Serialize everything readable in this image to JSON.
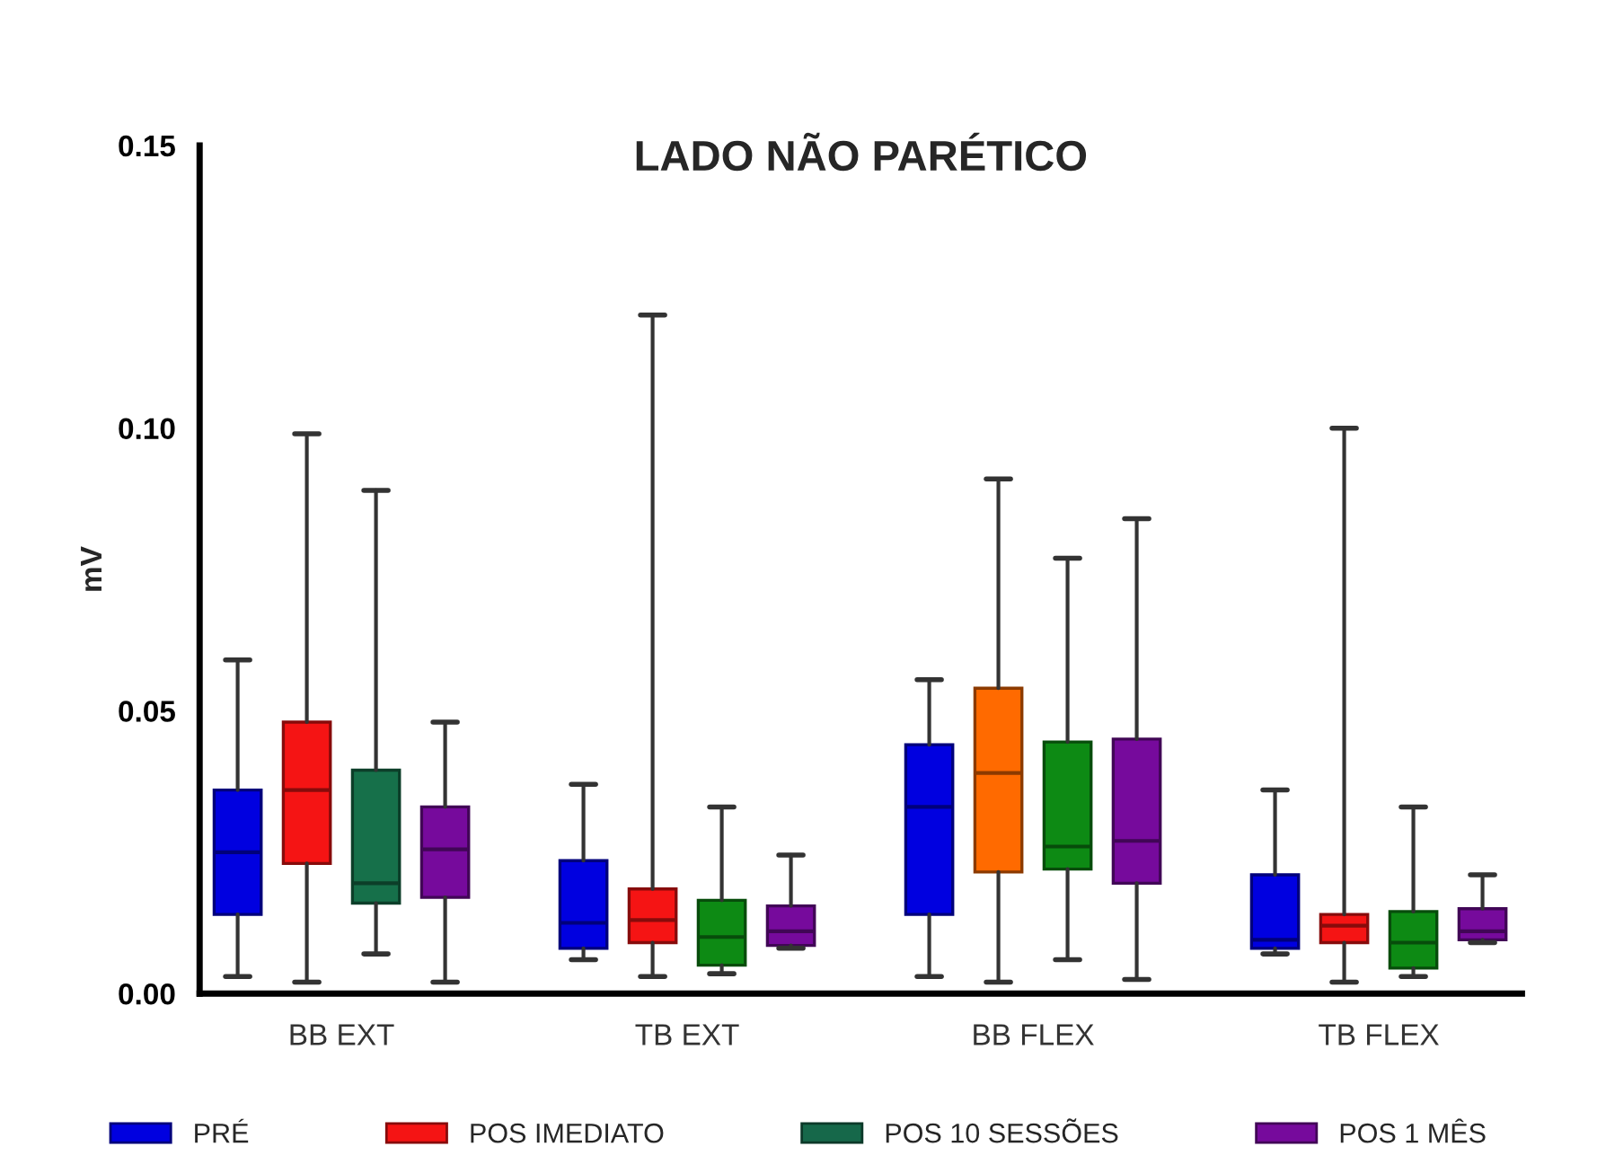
{
  "chart_data": {
    "type": "box",
    "title": "LADO NÃO PARÉTICO",
    "ylabel": "mV",
    "categories": [
      "BB EXT",
      "TB EXT",
      "BB FLEX",
      "TB FLEX"
    ],
    "series": [
      {
        "name": "PRÉ",
        "color": "#0000e0",
        "boxes": [
          {
            "low": 0.003,
            "q1": 0.014,
            "median": 0.025,
            "q3": 0.036,
            "high": 0.059
          },
          {
            "low": 0.006,
            "q1": 0.008,
            "median": 0.0125,
            "q3": 0.0235,
            "high": 0.037
          },
          {
            "low": 0.003,
            "q1": 0.014,
            "median": 0.033,
            "q3": 0.044,
            "high": 0.0555
          },
          {
            "low": 0.007,
            "q1": 0.008,
            "median": 0.0095,
            "q3": 0.021,
            "high": 0.036
          }
        ]
      },
      {
        "name": "POS IMEDIATO",
        "color": "#f51414",
        "colors": [
          "#f51414",
          "#f51414",
          "#ff6a00",
          "#f51414"
        ],
        "boxes": [
          {
            "low": 0.002,
            "q1": 0.023,
            "median": 0.036,
            "q3": 0.048,
            "high": 0.099
          },
          {
            "low": 0.003,
            "q1": 0.009,
            "median": 0.013,
            "q3": 0.0185,
            "high": 0.12
          },
          {
            "low": 0.002,
            "q1": 0.0215,
            "median": 0.039,
            "q3": 0.054,
            "high": 0.091
          },
          {
            "low": 0.002,
            "q1": 0.009,
            "median": 0.012,
            "q3": 0.014,
            "high": 0.1
          }
        ]
      },
      {
        "name": "POS 10 SESSÕES",
        "color": "#16684a",
        "colors": [
          "#16704a",
          "#0d8a14",
          "#0d8a14",
          "#0d8a14"
        ],
        "boxes": [
          {
            "low": 0.007,
            "q1": 0.016,
            "median": 0.0195,
            "q3": 0.0395,
            "high": 0.089
          },
          {
            "low": 0.0035,
            "q1": 0.005,
            "median": 0.01,
            "q3": 0.0165,
            "high": 0.033
          },
          {
            "low": 0.006,
            "q1": 0.022,
            "median": 0.026,
            "q3": 0.0445,
            "high": 0.077
          },
          {
            "low": 0.003,
            "q1": 0.0045,
            "median": 0.009,
            "q3": 0.0145,
            "high": 0.033
          }
        ]
      },
      {
        "name": "POS 1 MÊS",
        "color": "#760a9c",
        "boxes": [
          {
            "low": 0.002,
            "q1": 0.017,
            "median": 0.0255,
            "q3": 0.033,
            "high": 0.048
          },
          {
            "low": 0.008,
            "q1": 0.0085,
            "median": 0.011,
            "q3": 0.0155,
            "high": 0.0245
          },
          {
            "low": 0.0025,
            "q1": 0.0195,
            "median": 0.027,
            "q3": 0.045,
            "high": 0.084
          },
          {
            "low": 0.009,
            "q1": 0.0095,
            "median": 0.011,
            "q3": 0.015,
            "high": 0.021
          }
        ]
      }
    ],
    "ylim": [
      0,
      0.15
    ],
    "yticks": [
      {
        "value": 0,
        "label": "0.00"
      },
      {
        "value": 0.05,
        "label": "0.05"
      },
      {
        "value": 0.1,
        "label": "0.10"
      },
      {
        "value": 0.15,
        "label": "0.15"
      }
    ],
    "legend": "bottom",
    "grid": false
  }
}
